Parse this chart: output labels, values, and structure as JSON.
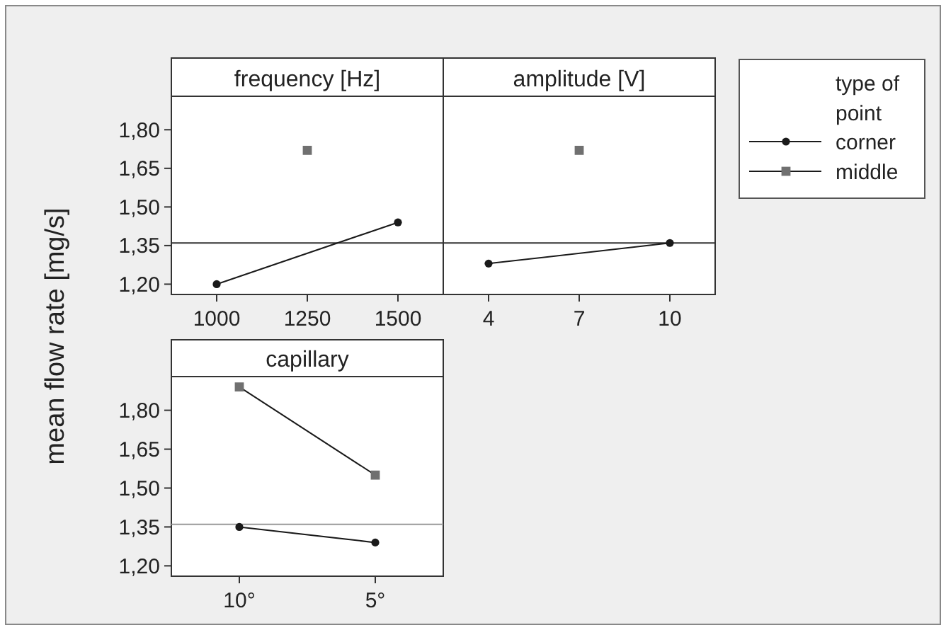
{
  "chart_data": [
    {
      "type": "line",
      "title": "frequency [Hz]",
      "ylabel": "mean flow rate [mg/s]",
      "legend_title": "type of point",
      "legend": "right",
      "xlim": [
        875,
        1625
      ],
      "xticks": [
        1000,
        1250,
        1500
      ],
      "ylim": [
        1.16,
        1.93
      ],
      "yticks": [
        {
          "value": 1.2,
          "label": "1,20"
        },
        {
          "value": 1.35,
          "label": "1,35"
        },
        {
          "value": 1.5,
          "label": "1,50"
        },
        {
          "value": 1.65,
          "label": "1,65"
        },
        {
          "value": 1.8,
          "label": "1,80"
        }
      ],
      "ref_lines": [
        {
          "axis": "y",
          "value": 1.36,
          "color": "#333333"
        }
      ],
      "series": [
        {
          "name": "corner",
          "color": "#1a1a1a",
          "marker": "circle",
          "x": [
            1000,
            1500
          ],
          "values": [
            1.2,
            1.44
          ]
        },
        {
          "name": "middle",
          "color": "#707070",
          "marker": "square",
          "x": [
            1250
          ],
          "values": [
            1.72
          ]
        }
      ]
    },
    {
      "type": "line",
      "title": "amplitude [V]",
      "tick_labels": "x",
      "xlim": [
        2.5,
        11.5
      ],
      "xticks": [
        4,
        7,
        10
      ],
      "ylim": [
        1.16,
        1.93
      ],
      "ref_lines": [
        {
          "axis": "y",
          "value": 1.36,
          "color": "#333333"
        }
      ],
      "series": [
        {
          "color": "#1a1a1a",
          "marker": "circle",
          "x": [
            4,
            10
          ],
          "values": [
            1.28,
            1.36
          ]
        },
        {
          "color": "#707070",
          "marker": "square",
          "x": [
            7
          ],
          "values": [
            1.72
          ]
        }
      ]
    },
    {
      "type": "line",
      "title": "capillary",
      "categories": [
        "10°",
        "5°"
      ],
      "ylim": [
        1.16,
        1.93
      ],
      "yticks": [
        {
          "value": 1.2,
          "label": "1,20"
        },
        {
          "value": 1.35,
          "label": "1,35"
        },
        {
          "value": 1.5,
          "label": "1,50"
        },
        {
          "value": 1.65,
          "label": "1,65"
        },
        {
          "value": 1.8,
          "label": "1,80"
        }
      ],
      "ref_lines": [
        {
          "axis": "y",
          "value": 1.36,
          "color": "#999999"
        }
      ],
      "series": [
        {
          "color": "#1a1a1a",
          "marker": "circle",
          "values": [
            1.35,
            1.29
          ]
        },
        {
          "color": "#707070",
          "marker": "square",
          "values": [
            1.89,
            1.55
          ]
        }
      ]
    }
  ]
}
